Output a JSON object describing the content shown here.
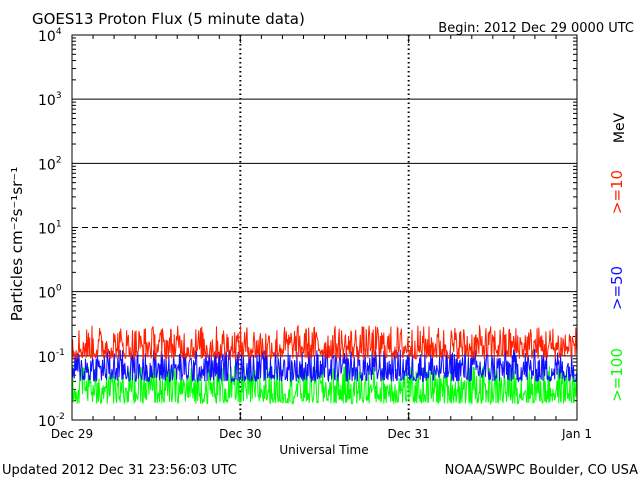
{
  "chart_data": {
    "type": "line",
    "title": "GOES13 Proton Flux (5 minute data)",
    "subtitle": "Begin: 2012 Dec 29 0000 UTC",
    "xlabel": "Universal Time",
    "ylabel": "Particles cm⁻²s⁻¹sr⁻¹",
    "units_label": "MeV",
    "y_scale": "log",
    "ylim": [
      0.01,
      10000
    ],
    "xlim": [
      "2012-12-29 00:00",
      "2013-01-01 00:00"
    ],
    "x_ticks": [
      "Dec 29",
      "Dec 30",
      "Dec 31",
      "Jan 1"
    ],
    "y_ticks": [
      {
        "base": "10",
        "exp": "-2",
        "value": 0.01
      },
      {
        "base": "10",
        "exp": "-1",
        "value": 0.1
      },
      {
        "base": "10",
        "exp": "0",
        "value": 1
      },
      {
        "base": "10",
        "exp": "1",
        "value": 10
      },
      {
        "base": "10",
        "exp": "2",
        "value": 100
      },
      {
        "base": "10",
        "exp": "3",
        "value": 1000
      },
      {
        "base": "10",
        "exp": "4",
        "value": 10000
      }
    ],
    "threshold_line": 10,
    "grid": true,
    "series": [
      {
        "name": ">=10",
        "color": "#ff2000",
        "level_low": 0.09,
        "level_high": 0.3
      },
      {
        "name": ">=50",
        "color": "#1010ff",
        "level_low": 0.04,
        "level_high": 0.13
      },
      {
        "name": ">=100",
        "color": "#00ff00",
        "level_low": 0.018,
        "level_high": 0.07
      }
    ]
  },
  "footer": {
    "updated": "Updated 2012 Dec 31 23:56:03 UTC",
    "credit": "NOAA/SWPC Boulder, CO USA"
  }
}
